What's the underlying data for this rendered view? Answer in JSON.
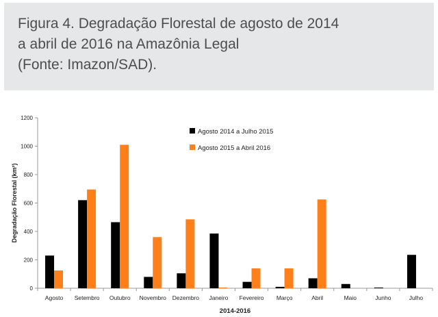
{
  "caption": {
    "line1": "Figura 4. Degradação Florestal de agosto de 2014",
    "line2": "a abril de 2016 na Amazônia Legal",
    "line3": "(Fonte: Imazon/SAD)."
  },
  "colors": {
    "series1": "#000000",
    "series2": "#ff7f1a",
    "caption_bg": "#e6e7e8",
    "axis": "#999999"
  },
  "chart_data": {
    "type": "bar",
    "title": "",
    "xlabel": "2014-2016",
    "ylabel": "Degradação Florestal (km²)",
    "ylim": [
      0,
      1200
    ],
    "yticks": [
      0,
      200,
      400,
      600,
      800,
      1000,
      1200
    ],
    "grid": false,
    "legend_position": "top-center",
    "categories": [
      "Agosto",
      "Setembro",
      "Outubro",
      "Novembro",
      "Dezembro",
      "Janeiro",
      "Fevereiro",
      "Março",
      "Abril",
      "Maio",
      "Junho",
      "Julho"
    ],
    "series": [
      {
        "name": "Agosto 2014 a Julho 2015",
        "values": [
          230,
          620,
          465,
          80,
          105,
          385,
          45,
          10,
          70,
          30,
          5,
          235
        ]
      },
      {
        "name": "Agosto 2015 a Abril 2016",
        "values": [
          125,
          695,
          1010,
          360,
          485,
          5,
          140,
          140,
          625,
          null,
          null,
          null
        ]
      }
    ]
  }
}
